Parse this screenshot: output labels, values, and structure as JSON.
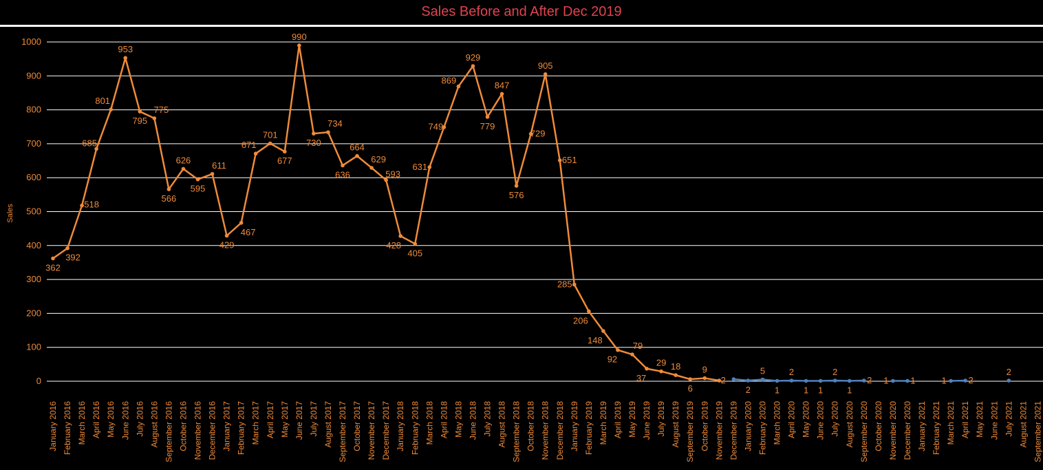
{
  "chart_data": {
    "type": "line",
    "title": "Sales Before and After Dec 2019",
    "ylabel": "Sales",
    "ylim": [
      0,
      1000
    ],
    "yticks": [
      0,
      100,
      200,
      300,
      400,
      500,
      600,
      700,
      800,
      900,
      1000
    ],
    "grid": true,
    "categories": [
      "January 2016",
      "February 2016",
      "March 2016",
      "April 2016",
      "May 2016",
      "June 2016",
      "July 2016",
      "August 2016",
      "September 2016",
      "October 2016",
      "November 2016",
      "December 2016",
      "January 2017",
      "February 2017",
      "March 2017",
      "April 2017",
      "May 2017",
      "June 2017",
      "July 2017",
      "August 2017",
      "September 2017",
      "October 2017",
      "November 2017",
      "December 2017",
      "January 2018",
      "February 2018",
      "March 2018",
      "April 2018",
      "May 2018",
      "June 2018",
      "July 2018",
      "August 2018",
      "September 2018",
      "October 2018",
      "November 2018",
      "December 2018",
      "January 2019",
      "February 2019",
      "March 2019",
      "April 2019",
      "May 2019",
      "June 2019",
      "July 2019",
      "August 2019",
      "September 2019",
      "October 2019",
      "November 2019",
      "December 2019",
      "January 2020",
      "February 2020",
      "March 2020",
      "April 2020",
      "May 2020",
      "June 2020",
      "July 2020",
      "August 2020",
      "September 2020",
      "October 2020",
      "November 2020",
      "December 2020",
      "January 2021",
      "February 2021",
      "March 2021",
      "April 2021",
      "May 2021",
      "June 2021",
      "July 2021",
      "August 2021",
      "September 2021"
    ],
    "series": [
      {
        "color": "#ef8b3a",
        "values": [
          362,
          392,
          518,
          685,
          801,
          953,
          795,
          775,
          566,
          626,
          595,
          611,
          429,
          467,
          671,
          701,
          677,
          990,
          730,
          734,
          636,
          664,
          629,
          593,
          428,
          405,
          631,
          749,
          869,
          929,
          779,
          847,
          576,
          729,
          905,
          651,
          285,
          206,
          148,
          92,
          79,
          37,
          29,
          18,
          6,
          9,
          2,
          null,
          null,
          null,
          null,
          null,
          null,
          null,
          null,
          null,
          null,
          null,
          null,
          null,
          null,
          null,
          null,
          null,
          null,
          null,
          null,
          null,
          null
        ]
      },
      {
        "color": "#4f81bd",
        "values": [
          null,
          null,
          null,
          null,
          null,
          null,
          null,
          null,
          null,
          null,
          null,
          null,
          null,
          null,
          null,
          null,
          null,
          null,
          null,
          null,
          null,
          null,
          null,
          null,
          null,
          null,
          null,
          null,
          null,
          null,
          null,
          null,
          null,
          null,
          null,
          null,
          null,
          null,
          null,
          null,
          null,
          null,
          null,
          null,
          null,
          null,
          null,
          6,
          2,
          5,
          1,
          2,
          1,
          1,
          2,
          1,
          2,
          null,
          1,
          1,
          null,
          null,
          1,
          2,
          null,
          null,
          2,
          null,
          null
        ]
      }
    ],
    "visible_labels": [
      "362",
      "392",
      "518",
      "685",
      "801",
      "953",
      "795",
      "775",
      "566",
      "626",
      "595",
      "611",
      "429",
      "467",
      "671",
      "701",
      "677",
      "990",
      "730",
      "734",
      "636",
      "664",
      "629",
      "593",
      "428",
      "405",
      "631",
      "749",
      "869",
      "929",
      "779",
      "847",
      "576",
      "729",
      "905",
      "651",
      "285",
      "206",
      "148",
      "92",
      "79",
      "37",
      "29",
      "18",
      "6",
      "9",
      "2",
      "2",
      "5",
      "1",
      "2",
      "1",
      "1",
      "2",
      "1",
      "2",
      "1",
      "1",
      "1",
      "2",
      "2"
    ]
  }
}
